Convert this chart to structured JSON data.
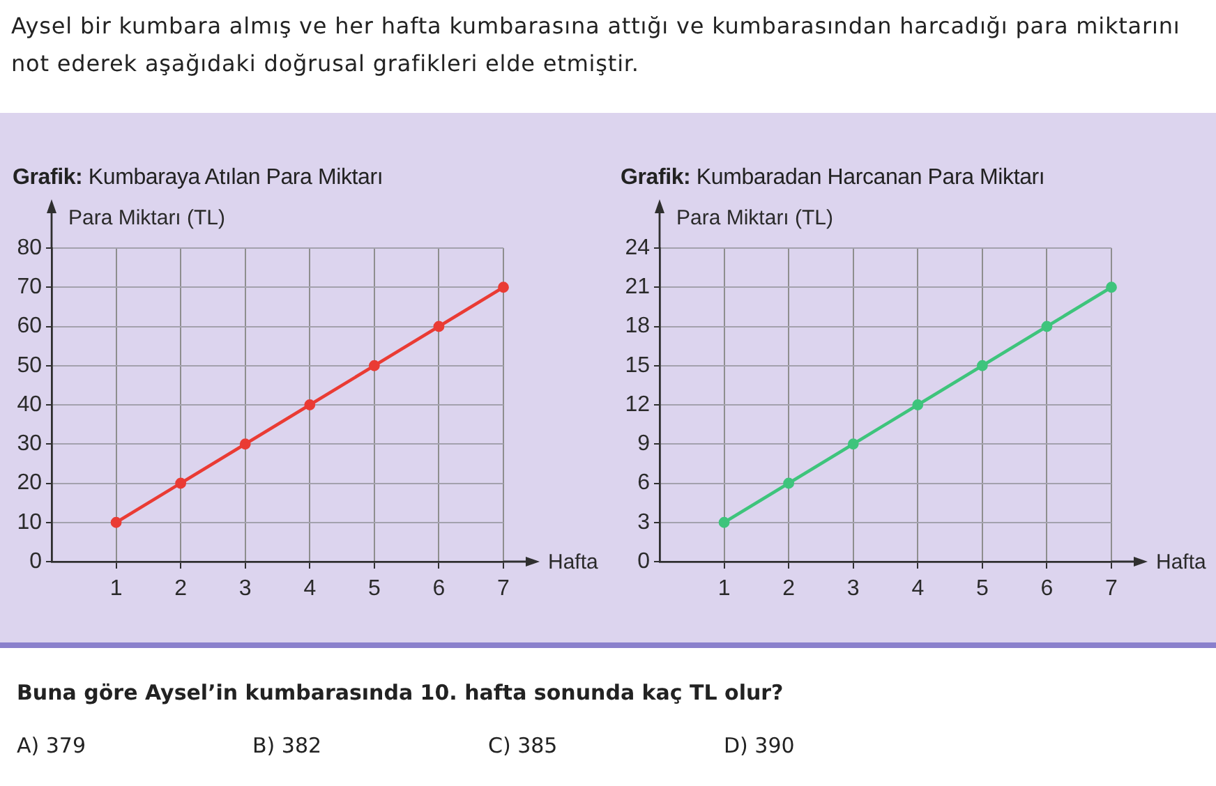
{
  "chart_data": [
    {
      "type": "line",
      "title": "Grafik: Kumbaraya Atılan Para Miktarı",
      "xlabel": "Hafta",
      "ylabel": "Para Miktarı (TL)",
      "x": [
        1,
        2,
        3,
        4,
        5,
        6,
        7
      ],
      "values": [
        10,
        20,
        30,
        40,
        50,
        60,
        70
      ],
      "color": "#ea3b34",
      "xlim": [
        0,
        7
      ],
      "xticks": [
        1,
        2,
        3,
        4,
        5,
        6,
        7
      ],
      "ylim": [
        0,
        80
      ],
      "yticks": [
        0,
        10,
        20,
        30,
        40,
        50,
        60,
        70,
        80
      ],
      "grid": true,
      "marker": "circle",
      "line_style": "solid",
      "annotations": [
        "Aysel bir kumbara almış ve her hafta kumbarasına attığı ve kumbarasından harcadığı para miktarını not ederek aşağıdaki doğrusal grafikleri elde etmiştir."
      ]
    },
    {
      "type": "line",
      "title": "Grafik: Kumbaradan Harcanan Para Miktarı",
      "xlabel": "Hafta",
      "ylabel": "Para Miktarı (TL)",
      "x": [
        1,
        2,
        3,
        4,
        5,
        6,
        7
      ],
      "values": [
        3,
        6,
        9,
        12,
        15,
        18,
        21
      ],
      "color": "#3ec47c",
      "xlim": [
        0,
        7
      ],
      "xticks": [
        1,
        2,
        3,
        4,
        5,
        6,
        7
      ],
      "ylim": [
        0,
        24
      ],
      "yticks": [
        0,
        3,
        6,
        9,
        12,
        15,
        18,
        21,
        24
      ],
      "grid": true,
      "marker": "circle",
      "line_style": "solid",
      "annotations": [
        "Buna göre Aysel’in kumbarasında 10. hafta sonunda kaç TL olur?",
        "A) 379",
        "B) 382",
        "C) 385",
        "D) 390"
      ]
    }
  ]
}
